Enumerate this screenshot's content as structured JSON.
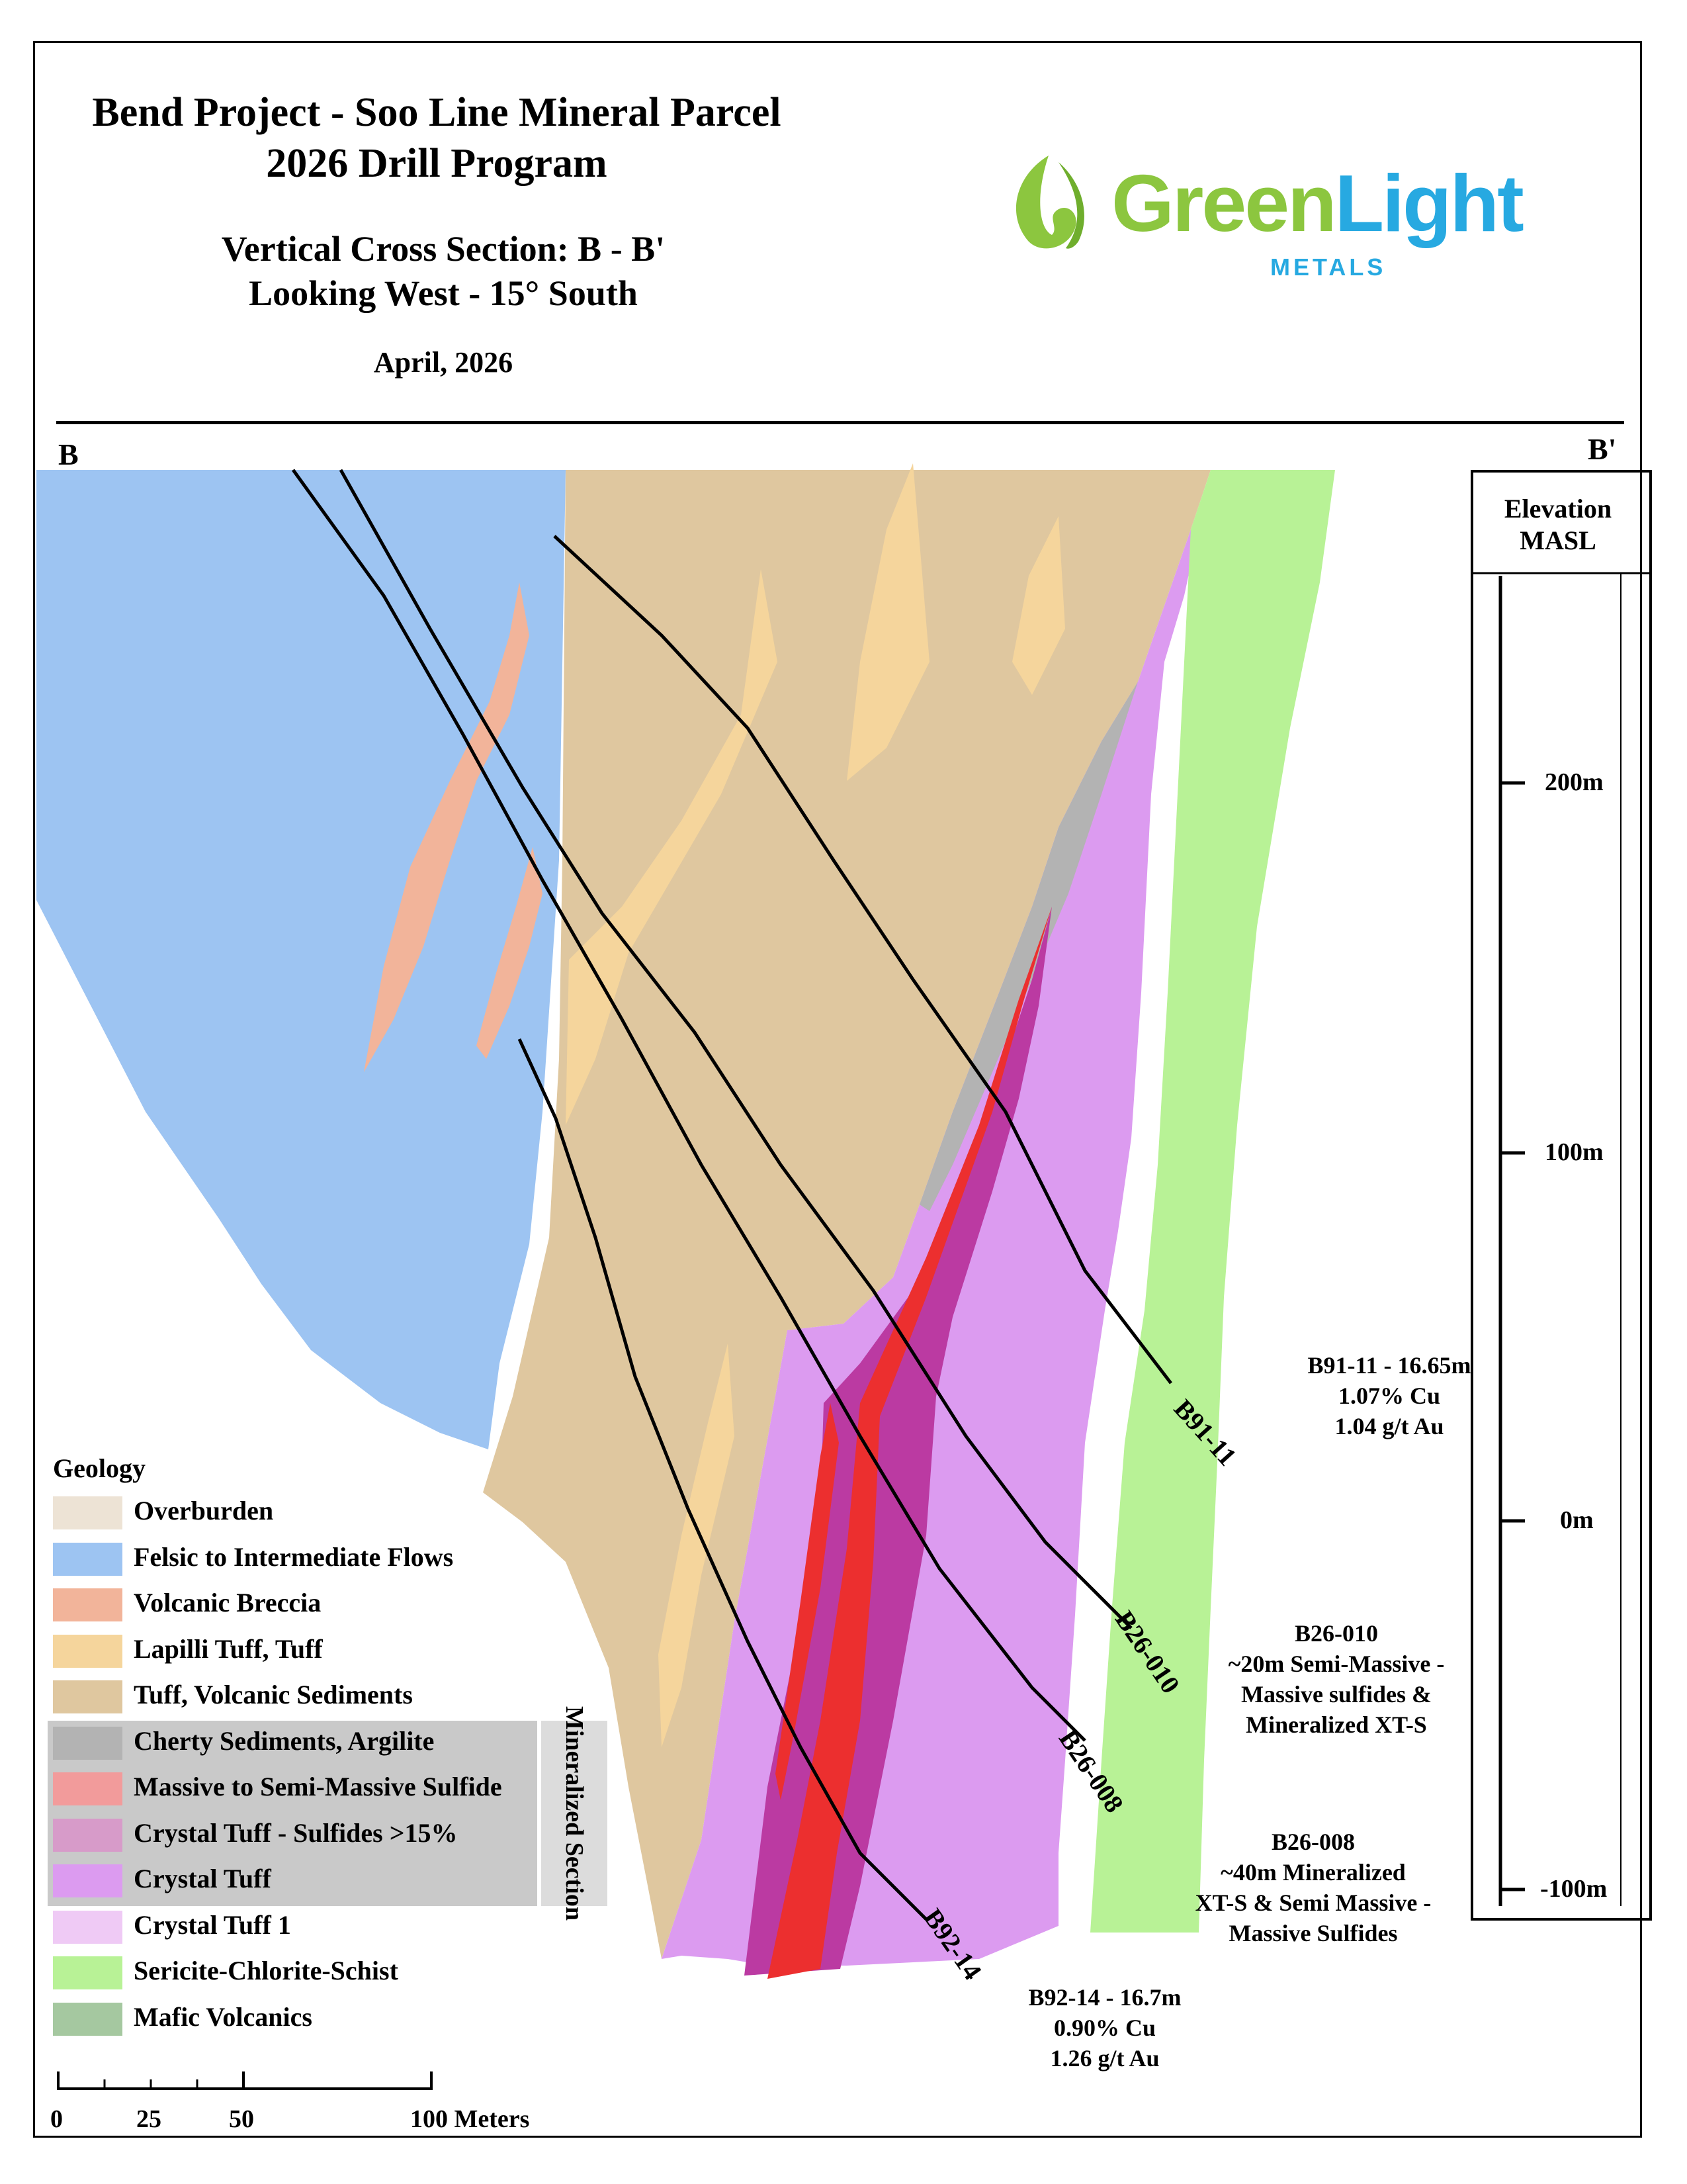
{
  "header": {
    "title_line1": "Bend Project - Soo Line Mineral Parcel",
    "title_line2": "2026 Drill Program",
    "subtitle_line1": "Vertical Cross Section: B - B'",
    "subtitle_line2": "Looking West - 15° South",
    "date": "April, 2026"
  },
  "logo": {
    "word1": "Green",
    "word2": "Light",
    "sub": "METALS",
    "icon": "leaf-icon",
    "colors": {
      "green": "#8cc63f",
      "blue": "#27a9e1"
    }
  },
  "section": {
    "start_label": "B",
    "end_label": "B'"
  },
  "elevation_scale": {
    "title_line1": "Elevation",
    "title_line2": "MASL",
    "ticks": [
      "200m",
      "100m",
      "0m",
      "-100m"
    ]
  },
  "drill_holes": [
    "B91-11",
    "B26-010",
    "B26-008",
    "B92-14"
  ],
  "callouts": {
    "b91_11": [
      "B91-11 - 16.65m",
      "1.07% Cu",
      "1.04 g/t Au"
    ],
    "b26_010": [
      "B26-010",
      "~20m Semi-Massive -",
      "Massive sulfides &",
      "Mineralized XT-S"
    ],
    "b26_008": [
      "B26-008",
      "~40m Mineralized",
      "XT-S & Semi Massive -",
      "Massive Sulfides"
    ],
    "b92_14": [
      "B92-14 - 16.7m",
      "0.90% Cu",
      "1.26 g/t Au"
    ]
  },
  "legend": {
    "title": "Geology",
    "mineralized_label": "Mineralized Section",
    "items": [
      {
        "label": "Overburden",
        "color": "#ede3d5"
      },
      {
        "label": "Felsic to Intermediate Flows",
        "color": "#9dc4f2"
      },
      {
        "label": "Volcanic Breccia",
        "color": "#f2b49a"
      },
      {
        "label": "Lapilli Tuff, Tuff",
        "color": "#f5d59c"
      },
      {
        "label": "Tuff, Volcanic Sediments",
        "color": "#dfc79f"
      },
      {
        "label": "Cherty Sediments, Argilite",
        "color": "#b3b3b3"
      },
      {
        "label": "Massive to Semi-Massive Sulfide",
        "color": "#f29b9b"
      },
      {
        "label": "Crystal Tuff - Sulfides >15%",
        "color": "#d79bc9"
      },
      {
        "label": "Crystal Tuff",
        "color": "#dc9bf0"
      },
      {
        "label": "Crystal Tuff 1",
        "color": "#efcaf5"
      },
      {
        "label": "Sericite-Chlorite-Schist",
        "color": "#b8f296"
      },
      {
        "label": "Mafic Volcanics",
        "color": "#a5c8a0"
      }
    ]
  },
  "scale_bar": {
    "labels": [
      "0",
      "25",
      "50",
      "100 Meters"
    ]
  }
}
